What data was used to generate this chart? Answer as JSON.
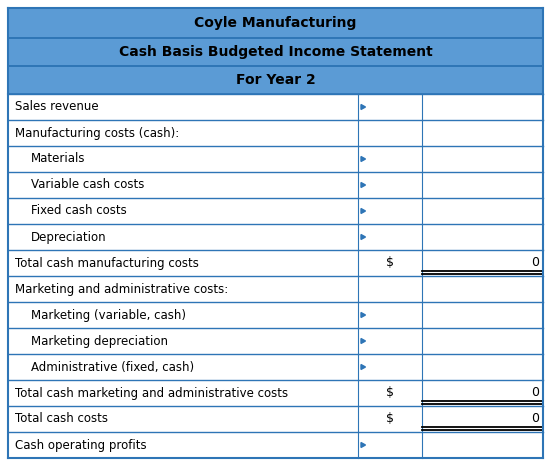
{
  "title1": "Coyle Manufacturing",
  "title2": "Cash Basis Budgeted Income Statement",
  "title3": "For Year 2",
  "header_bg": "#5B9BD5",
  "border_color": "#2E75B6",
  "text_color": "#000000",
  "rows": [
    {
      "label": "Sales revenue",
      "indent": 0,
      "dollar": false,
      "value": null,
      "has_arrow": true
    },
    {
      "label": "Manufacturing costs (cash):",
      "indent": 0,
      "dollar": false,
      "value": null,
      "has_arrow": false
    },
    {
      "label": "Materials",
      "indent": 1,
      "dollar": false,
      "value": null,
      "has_arrow": true
    },
    {
      "label": "Variable cash costs",
      "indent": 1,
      "dollar": false,
      "value": null,
      "has_arrow": true
    },
    {
      "label": "Fixed cash costs",
      "indent": 1,
      "dollar": false,
      "value": null,
      "has_arrow": true
    },
    {
      "label": "Depreciation",
      "indent": 1,
      "dollar": false,
      "value": null,
      "has_arrow": true
    },
    {
      "label": "Total cash manufacturing costs",
      "indent": 0,
      "dollar": true,
      "value": 0,
      "has_arrow": false,
      "total_row": true
    },
    {
      "label": "Marketing and administrative costs:",
      "indent": 0,
      "dollar": false,
      "value": null,
      "has_arrow": false
    },
    {
      "label": "Marketing (variable, cash)",
      "indent": 1,
      "dollar": false,
      "value": null,
      "has_arrow": true
    },
    {
      "label": "Marketing depreciation",
      "indent": 1,
      "dollar": false,
      "value": null,
      "has_arrow": true
    },
    {
      "label": "Administrative (fixed, cash)",
      "indent": 1,
      "dollar": false,
      "value": null,
      "has_arrow": true
    },
    {
      "label": "Total cash marketing and administrative costs",
      "indent": 0,
      "dollar": true,
      "value": 0,
      "has_arrow": false,
      "total_row": true
    },
    {
      "label": "Total cash costs",
      "indent": 0,
      "dollar": true,
      "value": 0,
      "has_arrow": false,
      "total_row": true
    },
    {
      "label": "Cash operating profits",
      "indent": 0,
      "dollar": false,
      "value": null,
      "has_arrow": true
    }
  ],
  "figsize": [
    5.51,
    4.66
  ],
  "dpi": 100
}
